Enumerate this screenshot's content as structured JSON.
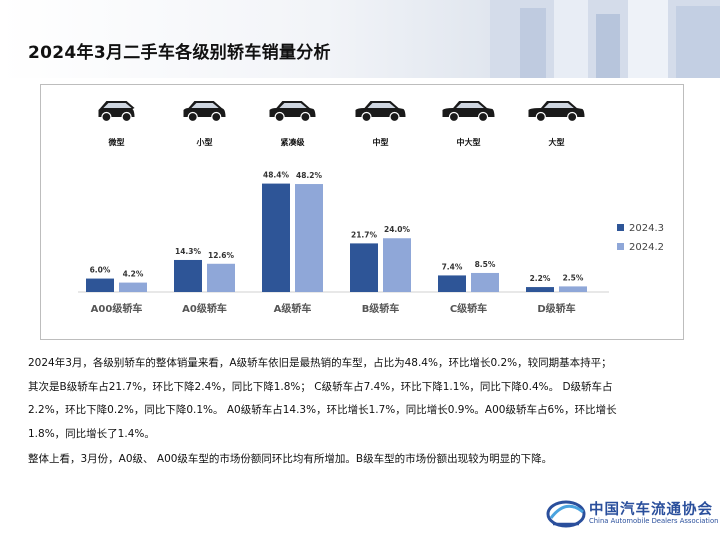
{
  "page": {
    "title": "2024年3月二手车各级别轿车销量分析"
  },
  "chart_data": {
    "type": "bar",
    "categories": [
      "A00级轿车",
      "A0级轿车",
      "A级轿车",
      "B级轿车",
      "C级轿车",
      "D级轿车"
    ],
    "car_icons": [
      {
        "label": "微型",
        "icon": "micro-car-icon"
      },
      {
        "label": "小型",
        "icon": "small-car-icon"
      },
      {
        "label": "紧凑级",
        "icon": "compact-car-icon"
      },
      {
        "label": "中型",
        "icon": "midsize-car-icon"
      },
      {
        "label": "中大型",
        "icon": "large-midsize-car-icon"
      },
      {
        "label": "大型",
        "icon": "large-car-icon"
      }
    ],
    "series": [
      {
        "name": "2024.3",
        "color": "#2e5597",
        "values": [
          6.0,
          14.3,
          48.4,
          21.7,
          7.4,
          2.2
        ],
        "labels": [
          "6.0%",
          "14.3%",
          "48.4%",
          "21.7%",
          "7.4%",
          "2.2%"
        ]
      },
      {
        "name": "2024.2",
        "color": "#8fa7d8",
        "values": [
          4.2,
          12.6,
          48.2,
          24.0,
          8.5,
          2.5
        ],
        "labels": [
          "4.2%",
          "12.6%",
          "48.2%",
          "24.0%",
          "8.5%",
          "2.5%"
        ]
      }
    ],
    "ylim": [
      0,
      50
    ],
    "legend_position": "right",
    "grid": false
  },
  "analysis": {
    "para1": [
      "2024年3月，各级别轿车的整体销量来看，A级轿车依旧是最热销的车型，占比为48.4%，环比增长0.2%，较同期基本持平；",
      "其次是B级轿车占21.7%，环比下降2.4%，同比下降1.8%； C级轿车占7.4%，环比下降1.1%，同比下降0.4%。 D级轿车占",
      "2.2%，环比下降0.2%，同比下降0.1%。 A0级轿车占14.3%，环比增长1.7%，同比增长0.9%。A00级轿车占6%，环比增长",
      "1.8%，同比增长了1.4%。"
    ],
    "para2": "整体上看，3月份，A0级、 A00级车型的市场份额同环比均有所增加。B级车型的市场份额出现较为明显的下降。"
  },
  "footer": {
    "logo_cn": "中国汽车流通协会",
    "logo_en": "China Automobile Dealers Association",
    "logo_icon": "cada-logo-icon"
  }
}
